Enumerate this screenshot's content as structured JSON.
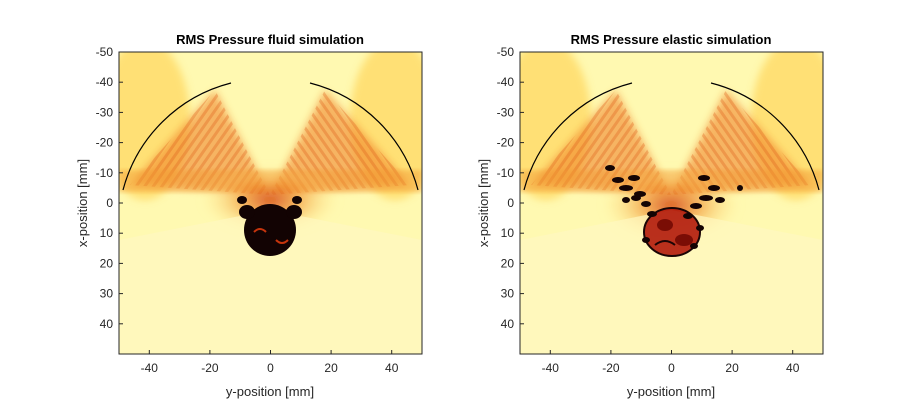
{
  "chart_data": [
    {
      "type": "heatmap",
      "title": "RMS Pressure fluid simulation",
      "xlabel": "y-position [mm]",
      "ylabel": "x-position [mm]",
      "xlim": [
        -50,
        50
      ],
      "ylim": [
        -50,
        50
      ],
      "y_reversed": true,
      "x_ticks": [
        -40,
        -20,
        0,
        20,
        40
      ],
      "y_ticks": [
        -50,
        -40,
        -30,
        -20,
        -10,
        0,
        10,
        20,
        30,
        40
      ],
      "colormap": "hot",
      "colors": {
        "high": "#000000",
        "mid": "#c81e0a",
        "low": "#ffffd0"
      },
      "transducer_arc": {
        "radius_mm": 48,
        "center": [
          0,
          5
        ],
        "start_deg": 108,
        "end_deg": 160
      },
      "target_region": {
        "y_center": 0,
        "x_center": 10,
        "pattern": "solid-dark"
      }
    },
    {
      "type": "heatmap",
      "title": "RMS Pressure elastic simulation",
      "xlabel": "y-position [mm]",
      "ylabel": "x-position [mm]",
      "xlim": [
        -50,
        50
      ],
      "ylim": [
        -50,
        50
      ],
      "y_reversed": true,
      "x_ticks": [
        -40,
        -20,
        0,
        20,
        40
      ],
      "y_ticks": [
        -50,
        -40,
        -30,
        -20,
        -10,
        0,
        10,
        20,
        30,
        40
      ],
      "colormap": "hot",
      "colors": {
        "high": "#000000",
        "mid": "#c81e0a",
        "low": "#ffffd0"
      },
      "transducer_arc": {
        "radius_mm": 48,
        "center": [
          0,
          5
        ],
        "start_deg": 108,
        "end_deg": 160
      },
      "target_region": {
        "y_center": 0,
        "x_center": 10,
        "pattern": "scattered-dark"
      }
    }
  ]
}
